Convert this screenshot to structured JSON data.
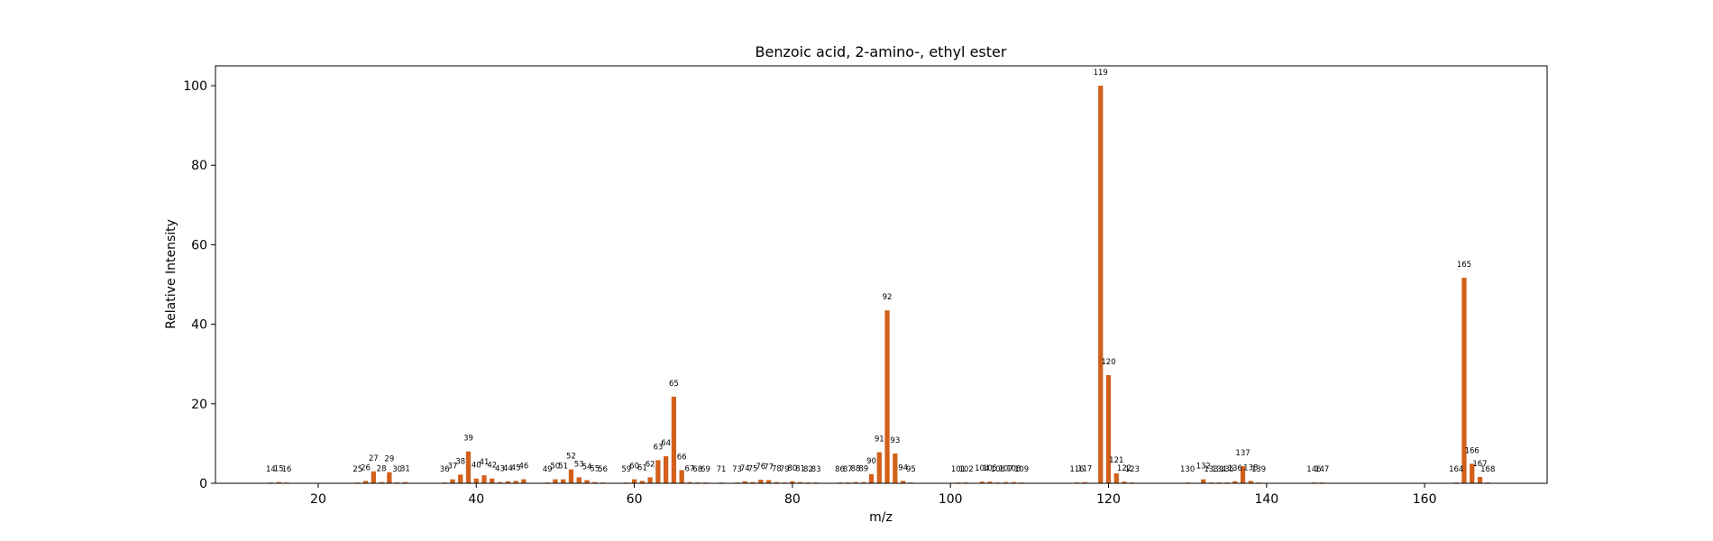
{
  "chart_data": {
    "type": "bar",
    "title": "Benzoic acid, 2-amino-, ethyl ester",
    "xlabel": "m/z",
    "ylabel": "Relative Intensity",
    "xlim": [
      7,
      175.5
    ],
    "ylim": [
      0,
      105
    ],
    "xticks": [
      20,
      40,
      60,
      80,
      100,
      120,
      140,
      160
    ],
    "yticks": [
      0,
      20,
      40,
      60,
      80,
      100
    ],
    "grid": false,
    "bar_color": "#d2601a",
    "x": [
      14,
      15,
      16,
      25,
      26,
      27,
      28,
      29,
      30,
      31,
      36,
      37,
      38,
      39,
      40,
      41,
      42,
      43,
      44,
      45,
      46,
      49,
      50,
      51,
      52,
      53,
      54,
      55,
      56,
      59,
      60,
      61,
      62,
      63,
      64,
      65,
      66,
      67,
      68,
      69,
      71,
      73,
      74,
      75,
      76,
      77,
      78,
      79,
      80,
      81,
      82,
      83,
      86,
      87,
      88,
      89,
      90,
      91,
      92,
      93,
      94,
      95,
      101,
      102,
      104,
      105,
      106,
      107,
      108,
      109,
      116,
      117,
      119,
      120,
      121,
      122,
      123,
      130,
      132,
      133,
      134,
      135,
      136,
      137,
      138,
      139,
      146,
      147,
      164,
      165,
      166,
      167,
      168
    ],
    "values": [
      0.2,
      0.3,
      0.2,
      0.2,
      0.6,
      3.0,
      0.3,
      2.8,
      0.2,
      0.3,
      0.2,
      1.0,
      2.2,
      8.0,
      1.2,
      2.0,
      1.2,
      0.3,
      0.5,
      0.6,
      1.0,
      0.2,
      1.0,
      1.0,
      3.5,
      1.5,
      0.8,
      0.3,
      0.2,
      0.2,
      1.0,
      0.6,
      1.5,
      5.8,
      6.8,
      21.8,
      3.3,
      0.3,
      0.2,
      0.2,
      0.2,
      0.2,
      0.5,
      0.3,
      0.9,
      0.8,
      0.3,
      0.2,
      0.5,
      0.3,
      0.2,
      0.2,
      0.2,
      0.2,
      0.3,
      0.3,
      2.3,
      7.8,
      43.5,
      7.5,
      0.6,
      0.2,
      0.2,
      0.2,
      0.4,
      0.4,
      0.2,
      0.3,
      0.3,
      0.2,
      0.2,
      0.3,
      100,
      27.2,
      2.5,
      0.4,
      0.2,
      0.2,
      1.0,
      0.2,
      0.2,
      0.2,
      0.5,
      4.3,
      0.6,
      0.2,
      0.2,
      0.2,
      0.2,
      51.7,
      4.9,
      1.6,
      0.2
    ]
  }
}
